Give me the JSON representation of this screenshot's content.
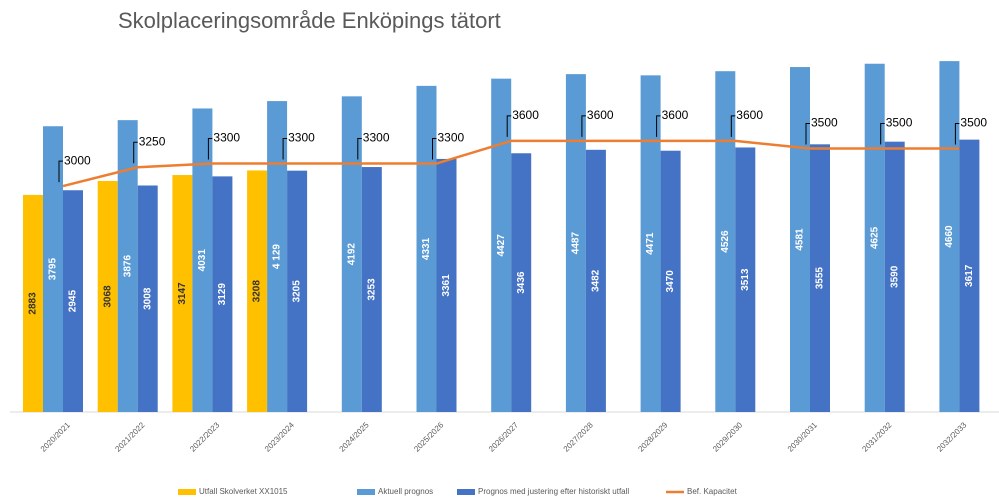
{
  "chart_data": {
    "type": "bar",
    "title": "Skolplaceringsområde Enköpings tätort",
    "categories": [
      "2020/2021",
      "2021/2022",
      "2022/2023",
      "2023/2024",
      "2024/2025",
      "2025/2026",
      "2026/2027",
      "2027/2028",
      "2028/2029",
      "2029/2030",
      "2030/2031",
      "2031/2032",
      "2032/2033"
    ],
    "series": [
      {
        "name": "Utfall Skolverket XX1015",
        "color": "#FFC000",
        "type": "bar",
        "values": [
          2883,
          3068,
          3147,
          3208,
          null,
          null,
          null,
          null,
          null,
          null,
          null,
          null,
          null
        ]
      },
      {
        "name": "Aktuell prognos",
        "color": "#5B9BD5",
        "type": "bar",
        "values": [
          3795,
          3876,
          4031,
          4129,
          4192,
          4331,
          4427,
          4487,
          4471,
          4526,
          4581,
          4625,
          4660
        ],
        "value_labels": [
          "3795",
          "3876",
          "4031",
          "4 129",
          "4192",
          "4331",
          "4427",
          "4487",
          "4471",
          "4526",
          "4581",
          "4625",
          "4660"
        ]
      },
      {
        "name": "Prognos med justering efter historiskt utfall",
        "color": "#4472C4",
        "type": "bar",
        "values": [
          2945,
          3008,
          3129,
          3205,
          3253,
          3361,
          3436,
          3482,
          3470,
          3513,
          3555,
          3590,
          3617
        ]
      },
      {
        "name": "Bef. Kapacitet",
        "color": "#ED7D31",
        "type": "line",
        "values": [
          3000,
          3250,
          3300,
          3300,
          3300,
          3300,
          3600,
          3600,
          3600,
          3600,
          3500,
          3500,
          3500
        ]
      }
    ],
    "ylim": [
      0,
      5000
    ],
    "legend": "bottom"
  }
}
